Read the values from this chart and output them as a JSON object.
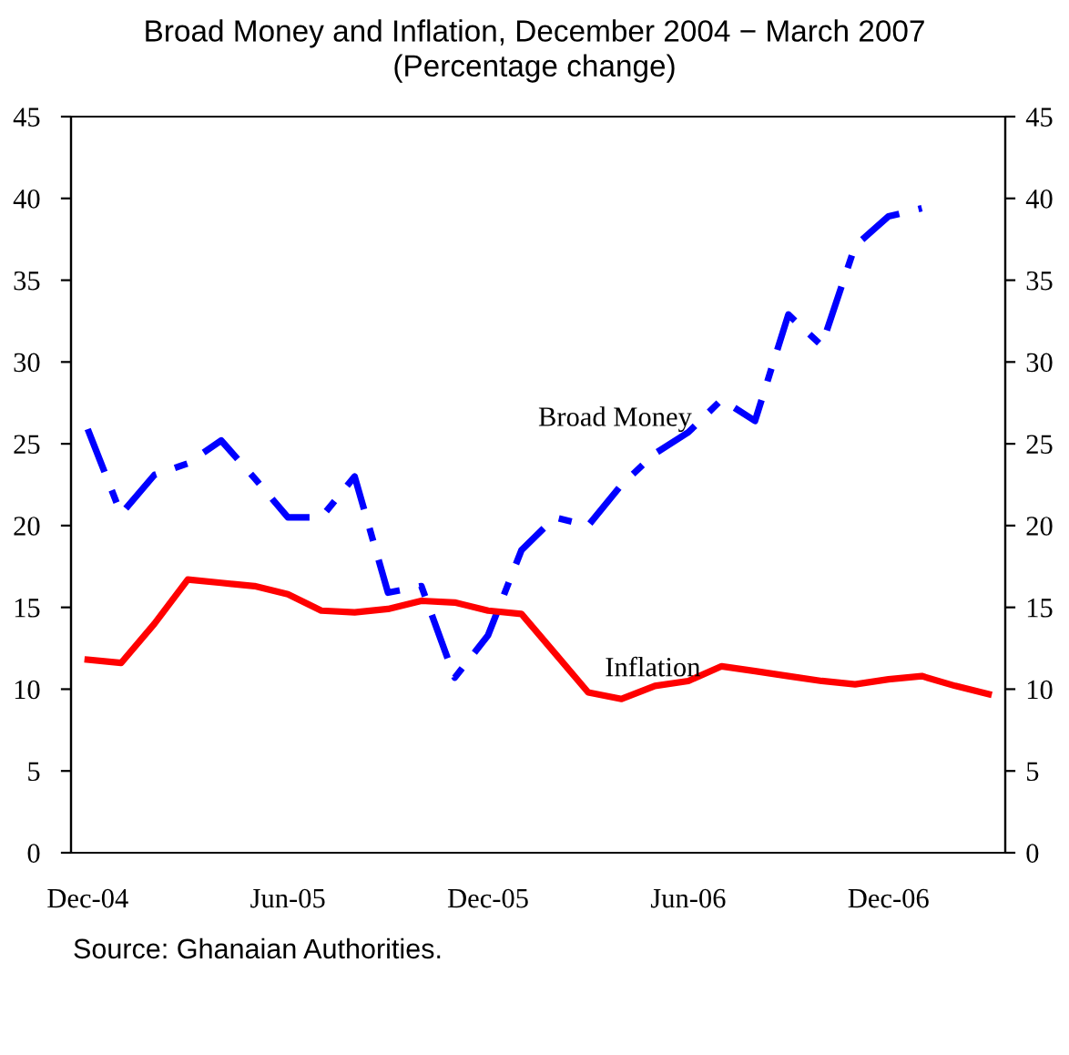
{
  "chart_data": {
    "type": "line",
    "title": "Broad Money and Inflation, December 2004 − March 2007\n(Percentage change)",
    "categories": [
      "Dec-04",
      null,
      null,
      null,
      null,
      null,
      "Jun-05",
      null,
      null,
      null,
      null,
      null,
      "Dec-05",
      null,
      null,
      null,
      null,
      null,
      "Jun-06",
      null,
      null,
      null,
      null,
      null,
      "Dec-06",
      null,
      null,
      null
    ],
    "series": [
      {
        "name": "Broad Money",
        "color": "#0000ff",
        "line_style": "dashed",
        "values": [
          25.9,
          20.7,
          23.1,
          23.8,
          25.2,
          22.9,
          20.5,
          20.5,
          23.0,
          15.9,
          16.3,
          10.7,
          13.3,
          18.5,
          20.5,
          20.0,
          22.5,
          24.4,
          25.7,
          27.7,
          26.4,
          32.9,
          31.0,
          37.1,
          38.9,
          39.4,
          null,
          null
        ]
      },
      {
        "name": "Inflation",
        "color": "#ff0000",
        "line_style": "solid",
        "values": [
          11.8,
          11.6,
          14.0,
          16.7,
          16.5,
          16.3,
          15.8,
          14.8,
          14.7,
          14.9,
          15.4,
          15.3,
          14.8,
          14.6,
          12.2,
          9.8,
          9.4,
          10.2,
          10.5,
          11.4,
          11.1,
          10.8,
          10.5,
          10.3,
          10.6,
          10.8,
          10.2,
          9.7
        ]
      }
    ],
    "ylim": [
      0,
      45
    ],
    "yticks": [
      0,
      5,
      10,
      15,
      20,
      25,
      30,
      35,
      40,
      45
    ],
    "y2lim": [
      0,
      45
    ],
    "y2ticks": [
      0,
      5,
      10,
      15,
      20,
      25,
      30,
      35,
      40,
      45
    ],
    "grid": false,
    "legend": false,
    "marker": "none",
    "annotations": [
      "Source: Ghanaian Authorities."
    ]
  }
}
